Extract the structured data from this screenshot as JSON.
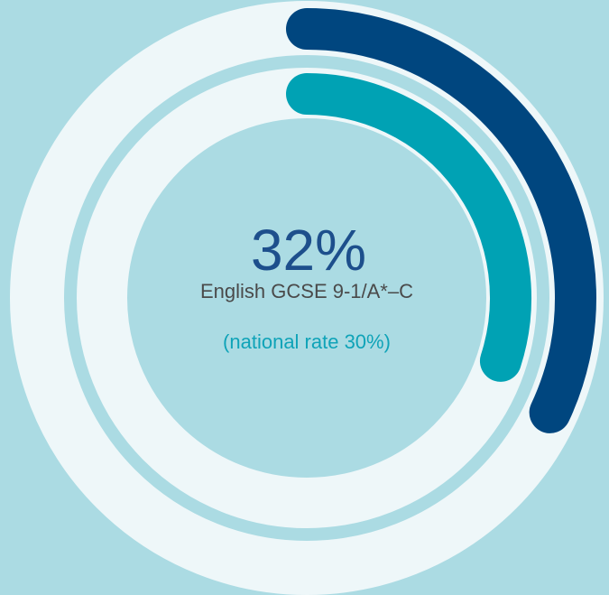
{
  "chart_data": {
    "type": "radial",
    "ylim": [
      0,
      100
    ],
    "label": "English GCSE 9-1/A*–C",
    "series": [
      {
        "color": "#00467f",
        "values": [
          32
        ],
        "value_labels": [
          "32%"
        ]
      },
      {
        "color": "#00a2b4",
        "values": [
          30
        ],
        "value_labels": [
          "(national rate 30%)"
        ]
      }
    ]
  }
}
